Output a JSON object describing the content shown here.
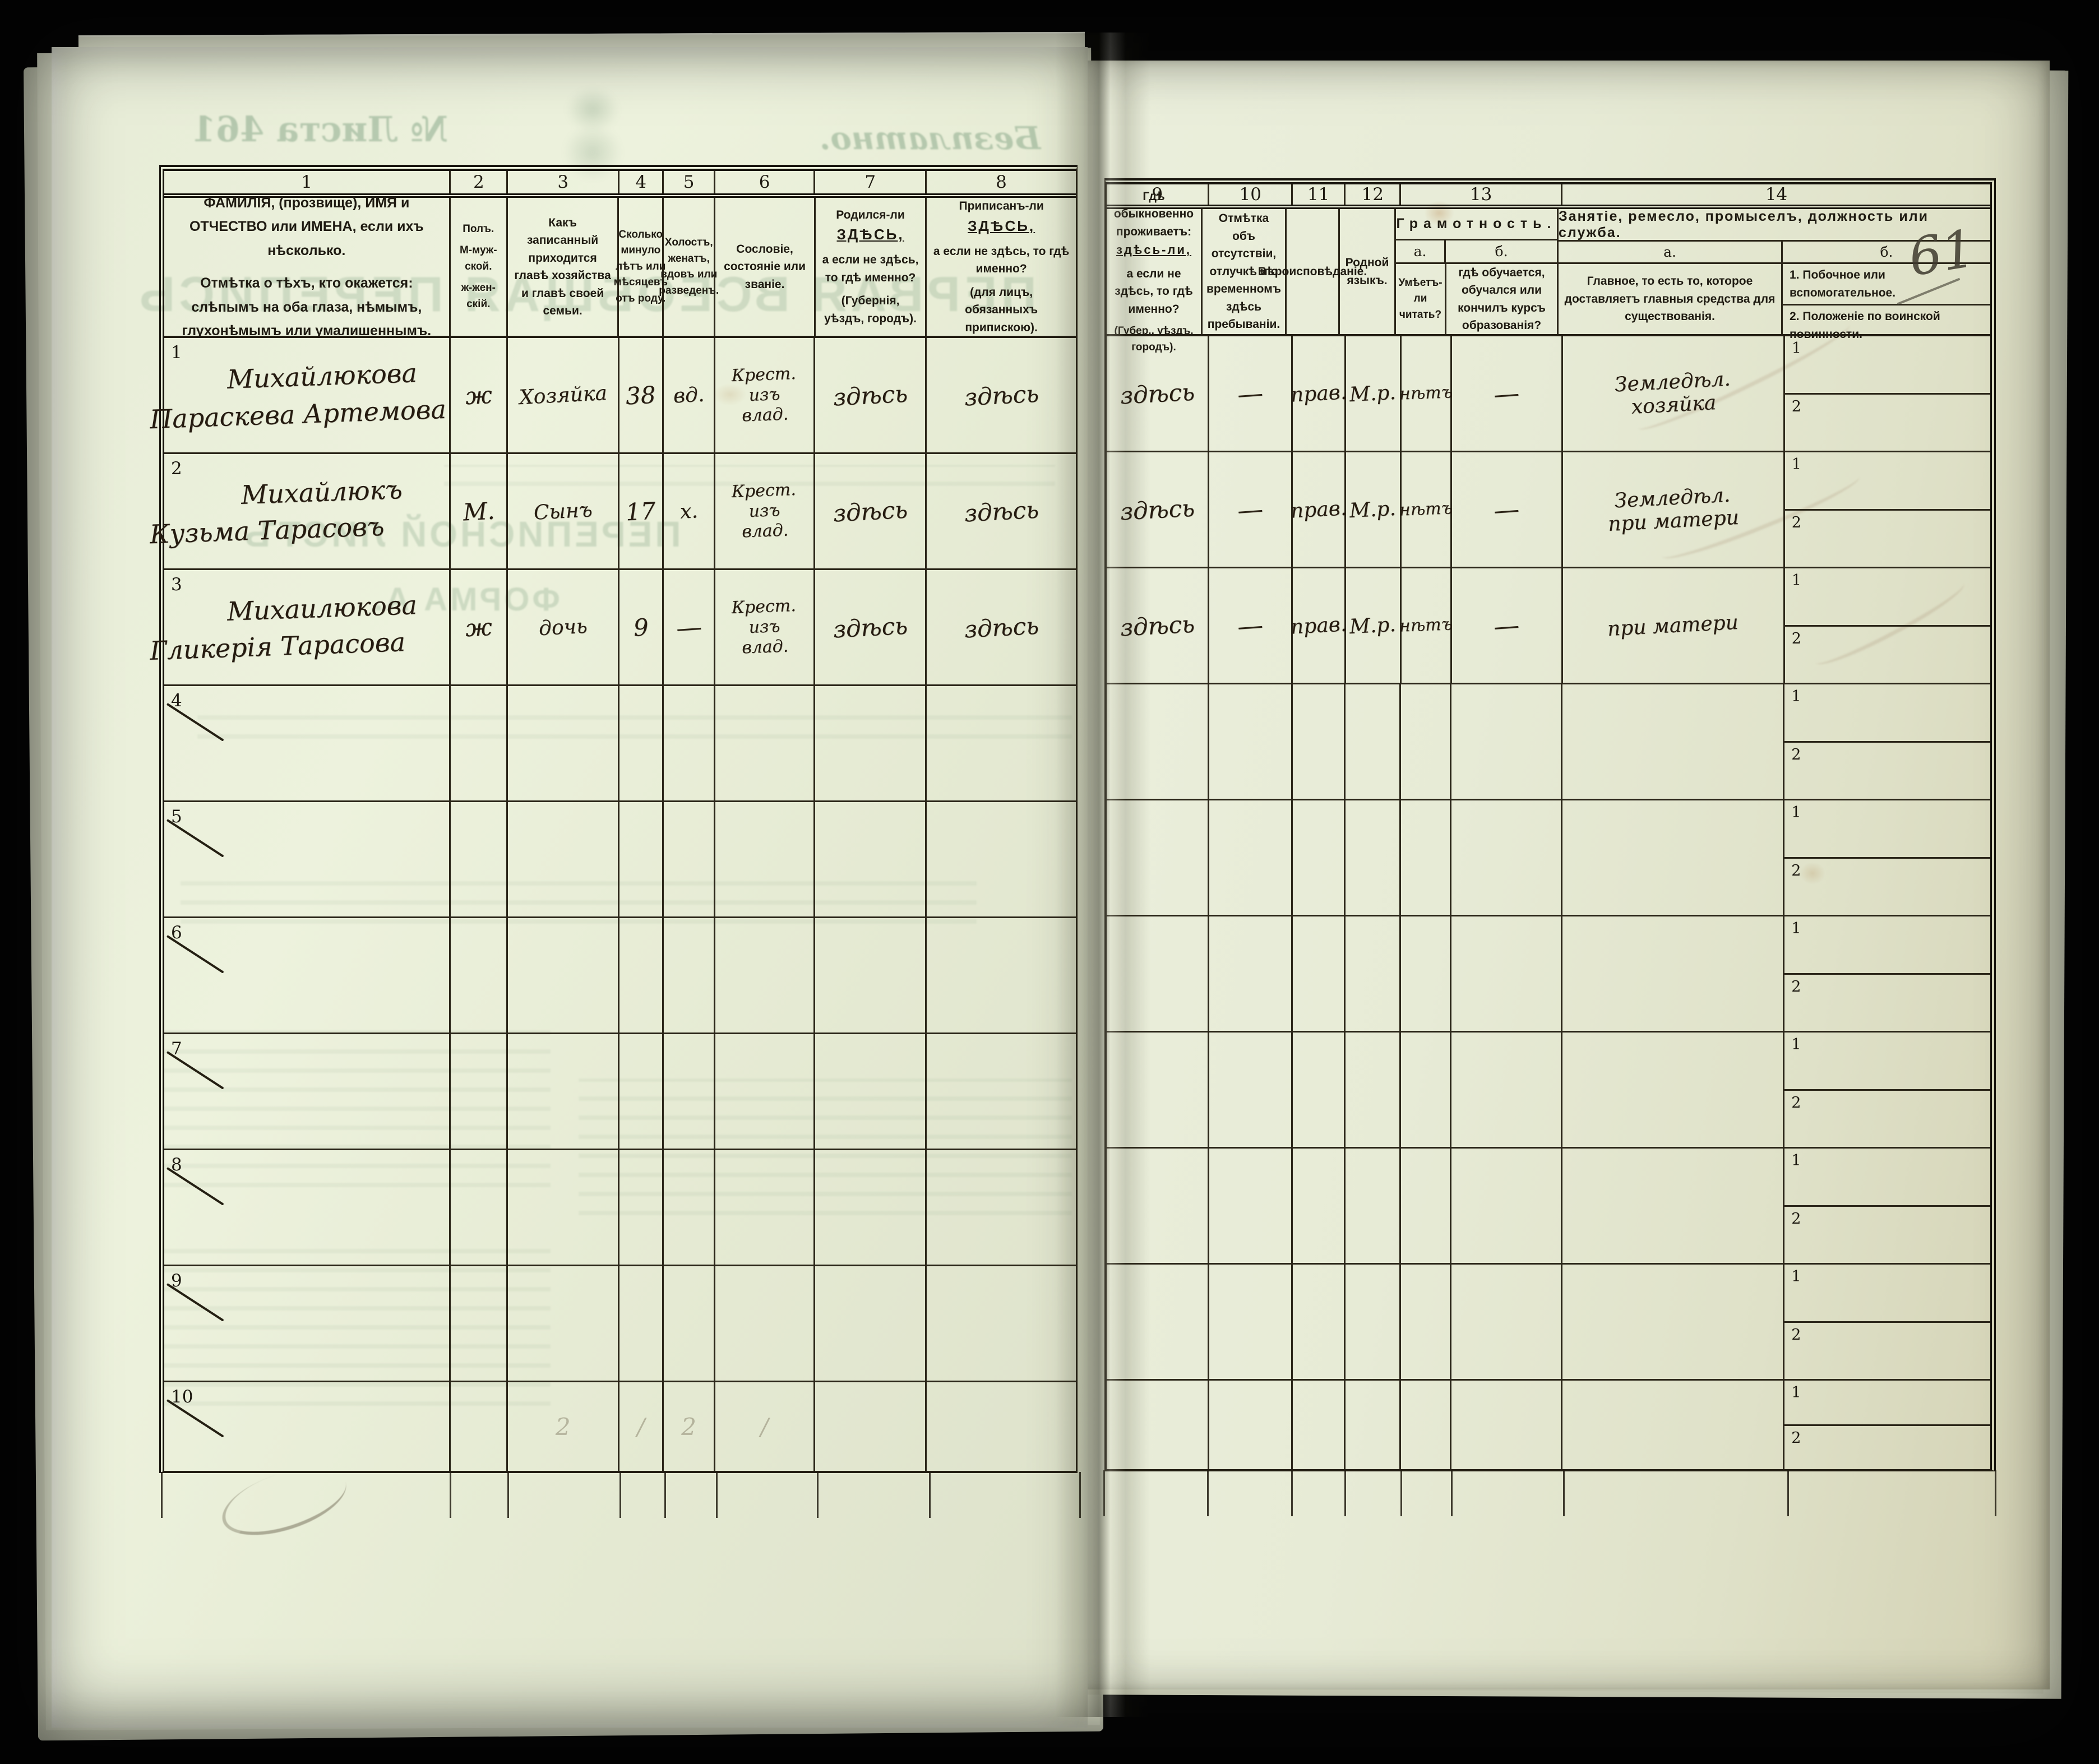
{
  "page": {
    "page_number_hw": "61",
    "ghosts": {
      "sheet_no": "№ Листа 461",
      "free": "Безплатно.",
      "census_title": "ПЕРВАЯ ВСЕОБЩАЯ ПЕРЕПИСЬ",
      "sheet_title": "ПЕРЕПИСНОЙ ЛИСТЪ",
      "form": "ФОРМА А."
    },
    "colors": {
      "paper": "#e8edd8",
      "ink": "#1f1b12",
      "handwriting": "#251b10",
      "ghost_green": "#6c8f6c"
    }
  },
  "table": {
    "col_numbers": [
      "1",
      "2",
      "3",
      "4",
      "5",
      "6",
      "7",
      "8",
      "9",
      "10",
      "11",
      "12",
      "13",
      "14"
    ],
    "headers": {
      "name": "ФАМИЛІЯ, (прозвище), ИМЯ и ОТЧЕСТВО или ИМЕНА, если ихъ нѣсколько.",
      "name_note": "Отмѣтка о тѣхъ, кто окажется: слѣпымъ на оба глаза, нѣмымъ, глухонѣмымъ или умалишеннымъ.",
      "sex": "Полъ.",
      "sex_m": "М-муж-ской.",
      "sex_f": "ж-жен-скій.",
      "relation": "Какъ записанный приходится главѣ хозяйства и главѣ своей семьи.",
      "age": "Сколько минуло лѣтъ или мѣсяцевъ отъ роду.",
      "marital": "Холостъ, женатъ, вдовъ или разведенъ.",
      "estate": "Сословіе, состояніе или званіе.",
      "born_pre": "Родился-ли",
      "born_emph": "ЗДѢСЬ,",
      "born_rest": "а если не здѣсь, то гдѣ именно?",
      "born_paren": "(Губернія, уѣздъ, городъ).",
      "registered_pre": "Приписанъ-ли",
      "registered_emph": "ЗДѢСЬ,",
      "registered_rest": "а если не здѣсь, то гдѣ именно?",
      "registered_paren": "(для лицъ, обязанныхъ припискою).",
      "resides_pre": "Гдѣ обыкновенно проживаетъ:",
      "resides_emph": "здѣсь-ли,",
      "resides_rest": "а если не здѣсь, то гдѣ именно?",
      "resides_paren": "(Губер., уѣздъ, городъ).",
      "absence": "Отмѣтка объ отсутствіи, отлучкѣ и о временномъ здѣсь пребываніи.",
      "religion": "Вѣроисповѣданіе.",
      "language": "Родной языкъ.",
      "literacy": "Грамотность.",
      "sub_a": "а.",
      "sub_b": "б.",
      "literacy_read": "Умѣетъ-ли читать?",
      "literacy_edu": "гдѣ обучается, обучался или кончилъ курсъ образованія?",
      "occupation": "Занятіе, ремесло, промыселъ, должность или служба.",
      "occupation_main": "Главное, то есть то, которое доставляетъ главныя средства для существованія.",
      "occupation_side_1": "1. Побочное или вспомогательное.",
      "occupation_side_2": "2. Положеніе по воинской повинности.",
      "sub_1": "1",
      "sub_2": "2"
    },
    "rows": [
      {
        "num": "1",
        "struck": false,
        "surname": "Михайлюкова",
        "given": "Параскева Артемова",
        "sex": "ж",
        "relation": "Хозяйка",
        "age": "38",
        "marital": "вд.",
        "estate": "Крест.\nизъ\nвлад.",
        "born": "здѣсь",
        "registered": "здѣсь",
        "resides": "здѣсь",
        "absence": "—",
        "religion": "прав.",
        "language": "М.р.",
        "reads": "нѣтъ",
        "education": "—",
        "occupation_main": "Земледѣл.\nхозяйка",
        "occupation_side": "",
        "military": ""
      },
      {
        "num": "2",
        "struck": false,
        "surname": "Михайлюкъ",
        "given": "Кузьма Тарасовъ",
        "sex": "М.",
        "relation": "Сынъ",
        "age": "17",
        "marital": "х.",
        "estate": "Крест.\nизъ\nвлад.",
        "born": "здѣсь",
        "registered": "здѣсь",
        "resides": "здѣсь",
        "absence": "—",
        "religion": "прав.",
        "language": "М.р.",
        "reads": "нѣтъ",
        "education": "—",
        "occupation_main": "Земледѣл.\nпри матери",
        "occupation_side": "",
        "military": ""
      },
      {
        "num": "3",
        "struck": false,
        "surname": "Михаилюкова",
        "given": "Гликерія Тарасова",
        "sex": "ж",
        "relation": "дочь",
        "age": "9",
        "marital": "—",
        "estate": "Крест.\nизъ\nвлад.",
        "born": "здѣсь",
        "registered": "здѣсь",
        "resides": "здѣсь",
        "absence": "—",
        "religion": "прав.",
        "language": "М.р.",
        "reads": "нѣтъ",
        "education": "—",
        "occupation_main": "при матери",
        "occupation_side": "",
        "military": ""
      },
      {
        "num": "4",
        "struck": true,
        "surname": "",
        "given": "",
        "sex": "",
        "relation": "",
        "age": "",
        "marital": "",
        "estate": "",
        "born": "",
        "registered": "",
        "resides": "",
        "absence": "",
        "religion": "",
        "language": "",
        "reads": "",
        "education": "",
        "occupation_main": "",
        "occupation_side": "",
        "military": ""
      },
      {
        "num": "5",
        "struck": true,
        "surname": "",
        "given": "",
        "sex": "",
        "relation": "",
        "age": "",
        "marital": "",
        "estate": "",
        "born": "",
        "registered": "",
        "resides": "",
        "absence": "",
        "religion": "",
        "language": "",
        "reads": "",
        "education": "",
        "occupation_main": "",
        "occupation_side": "",
        "military": ""
      },
      {
        "num": "6",
        "struck": true,
        "surname": "",
        "given": "",
        "sex": "",
        "relation": "",
        "age": "",
        "marital": "",
        "estate": "",
        "born": "",
        "registered": "",
        "resides": "",
        "absence": "",
        "religion": "",
        "language": "",
        "reads": "",
        "education": "",
        "occupation_main": "",
        "occupation_side": "",
        "military": ""
      },
      {
        "num": "7",
        "struck": true,
        "surname": "",
        "given": "",
        "sex": "",
        "relation": "",
        "age": "",
        "marital": "",
        "estate": "",
        "born": "",
        "registered": "",
        "resides": "",
        "absence": "",
        "religion": "",
        "language": "",
        "reads": "",
        "education": "",
        "occupation_main": "",
        "occupation_side": "",
        "military": ""
      },
      {
        "num": "8",
        "struck": true,
        "surname": "",
        "given": "",
        "sex": "",
        "relation": "",
        "age": "",
        "marital": "",
        "estate": "",
        "born": "",
        "registered": "",
        "resides": "",
        "absence": "",
        "religion": "",
        "language": "",
        "reads": "",
        "education": "",
        "occupation_main": "",
        "occupation_side": "",
        "military": ""
      },
      {
        "num": "9",
        "struck": true,
        "surname": "",
        "given": "",
        "sex": "",
        "relation": "",
        "age": "",
        "marital": "",
        "estate": "",
        "born": "",
        "registered": "",
        "resides": "",
        "absence": "",
        "religion": "",
        "language": "",
        "reads": "",
        "education": "",
        "occupation_main": "",
        "occupation_side": "",
        "military": ""
      },
      {
        "num": "10",
        "struck": true,
        "surname": "",
        "given": "",
        "sex": "",
        "relation": "",
        "age": "",
        "marital": "",
        "estate": "",
        "born": "",
        "registered": "",
        "resides": "",
        "absence": "",
        "religion": "",
        "language": "",
        "reads": "",
        "education": "",
        "occupation_main": "",
        "occupation_side": "",
        "military": "",
        "pencil": [
          "2",
          "/",
          "2",
          "/"
        ]
      }
    ]
  }
}
